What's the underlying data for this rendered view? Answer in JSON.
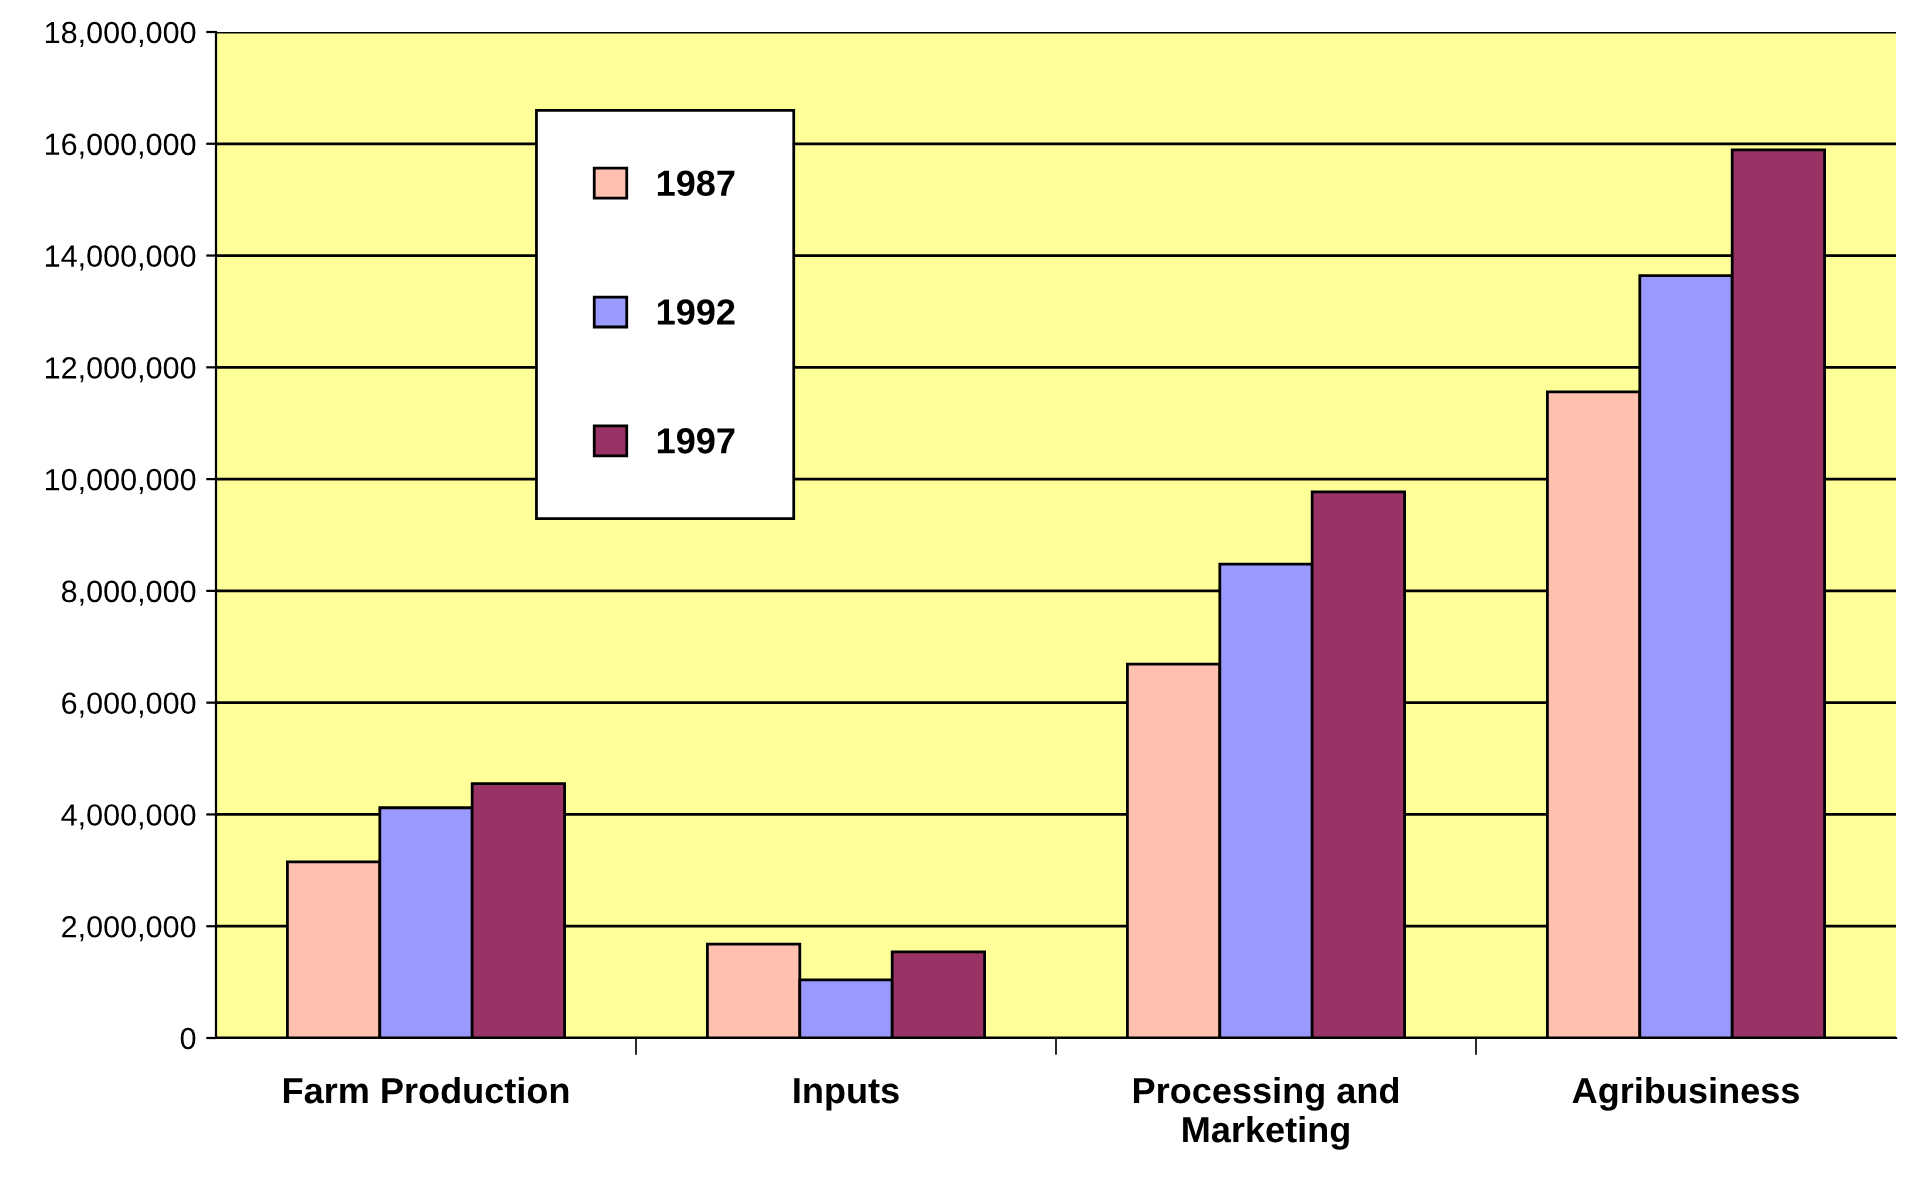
{
  "chart_data": {
    "type": "bar",
    "categories": [
      "Farm Production",
      "Inputs",
      "Processing and\nMarketing",
      "Agribusiness"
    ],
    "series": [
      {
        "name": "1987",
        "color": "#ffc0b0",
        "values": [
          3150000,
          1680000,
          6690000,
          11560000
        ]
      },
      {
        "name": "1992",
        "color": "#9999ff",
        "values": [
          4120000,
          1040000,
          8480000,
          13640000
        ]
      },
      {
        "name": "1997",
        "color": "#993366",
        "values": [
          4550000,
          1540000,
          9770000,
          15890000
        ]
      }
    ],
    "ylim": [
      0,
      18000000
    ],
    "yticks": [
      {
        "value": 0,
        "label": "0"
      },
      {
        "value": 2000000,
        "label": "2,000,000"
      },
      {
        "value": 4000000,
        "label": "4,000,000"
      },
      {
        "value": 6000000,
        "label": "6,000,000"
      },
      {
        "value": 8000000,
        "label": "8,000,000"
      },
      {
        "value": 10000000,
        "label": "10,000,000"
      },
      {
        "value": 12000000,
        "label": "12,000,000"
      },
      {
        "value": 14000000,
        "label": "14,000,000"
      },
      {
        "value": 16000000,
        "label": "16,000,000"
      },
      {
        "value": 18000000,
        "label": "18,000,000"
      }
    ],
    "grid": "y",
    "legend": "top left"
  }
}
